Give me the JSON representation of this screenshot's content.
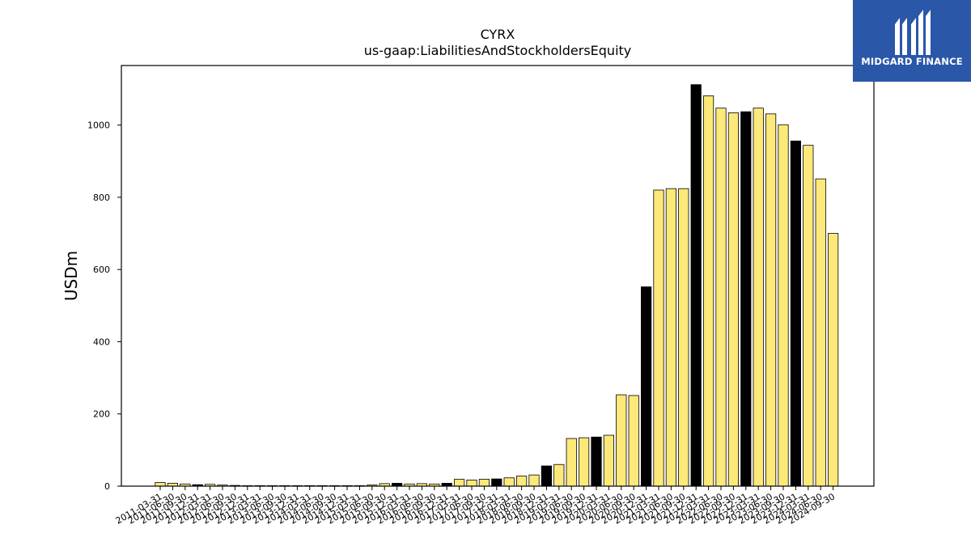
{
  "chart_data": {
    "type": "bar",
    "title": "CYRX",
    "subtitle": "us-gaap:LiabilitiesAndStockholdersEquity",
    "xlabel": "",
    "ylabel": "USDm",
    "ylim": [
      0,
      1165
    ],
    "yticks": [
      0,
      200,
      400,
      600,
      800,
      1000
    ],
    "grid": false,
    "colors": {
      "bar": "#fde97a",
      "highlight": "#000000",
      "edge": "#000000"
    },
    "categories": [
      "2011-03-31",
      "2011-06-30",
      "2011-09-30",
      "2011-12-31",
      "2012-03-31",
      "2012-06-30",
      "2012-09-30",
      "2012-12-31",
      "2013-03-31",
      "2013-06-30",
      "2013-09-30",
      "2013-12-31",
      "2014-03-31",
      "2014-06-30",
      "2014-09-30",
      "2014-12-31",
      "2015-03-31",
      "2015-06-30",
      "2015-09-30",
      "2015-12-31",
      "2016-03-31",
      "2016-06-30",
      "2016-09-30",
      "2016-12-31",
      "2017-03-31",
      "2017-06-30",
      "2017-09-30",
      "2017-12-31",
      "2018-03-31",
      "2018-06-30",
      "2018-09-30",
      "2018-12-31",
      "2019-03-31",
      "2019-06-30",
      "2019-09-30",
      "2019-12-31",
      "2020-03-31",
      "2020-06-30",
      "2020-09-30",
      "2020-12-31",
      "2021-03-31",
      "2021-06-30",
      "2021-09-30",
      "2021-12-31",
      "2022-03-31",
      "2022-06-30",
      "2022-09-30",
      "2022-12-31",
      "2023-03-31",
      "2023-06-30",
      "2023-09-30",
      "2023-12-31",
      "2024-03-31",
      "2024-06-30",
      "2024-09-30"
    ],
    "values": [
      10,
      8,
      6,
      4,
      5,
      3,
      2,
      1,
      1,
      1,
      1,
      1,
      1,
      1,
      1,
      1,
      1,
      3,
      7,
      8,
      6,
      7,
      6,
      8,
      19,
      17,
      19,
      20,
      23,
      28,
      31,
      56,
      60,
      132,
      134,
      136,
      141,
      253,
      251,
      552,
      820,
      824,
      824,
      1112,
      1081,
      1047,
      1034,
      1037,
      1047,
      1031,
      1001,
      956,
      944,
      851,
      700
    ],
    "highlight_categories": [
      "2011-12-31",
      "2012-12-31",
      "2013-12-31",
      "2014-12-31",
      "2015-12-31",
      "2016-12-31",
      "2017-12-31",
      "2018-12-31",
      "2019-12-31",
      "2020-12-31",
      "2021-12-31",
      "2022-12-31",
      "2023-12-31"
    ]
  },
  "logo": {
    "text": "MIDGARD FINANCE",
    "color": "#2a57a8"
  }
}
